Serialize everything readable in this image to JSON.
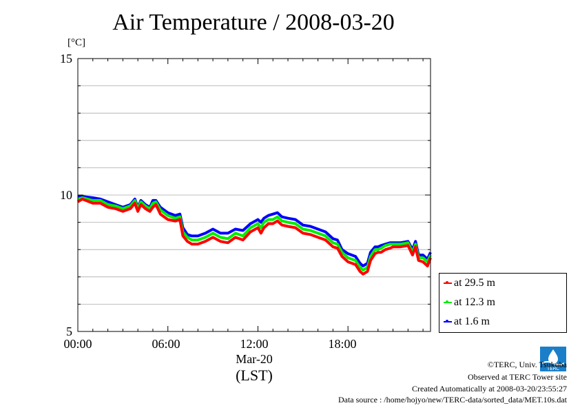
{
  "title": "Air Temperature / 2008-03-20",
  "unit": "[°C]",
  "colors": {
    "red": "#ff0000",
    "green": "#00ee00",
    "blue": "#0000ff",
    "logo": "#1a7fc8"
  },
  "legend": [
    "at 29.5 m",
    "at 12.3 m",
    "at 1.6 m"
  ],
  "xaxis": {
    "date": "Mar-20",
    "tz": "(LST)"
  },
  "footer": {
    "copyright": "©TERC, Univ. Tsukuba",
    "observed": "Observed at TERC Tower site",
    "created": "Created Automatically at 2008-03-20/23:55:27",
    "source": "Data source : /home/hojyo/new/TERC-data/sorted_data/MET.10s.dat"
  },
  "logo_text": "TERC",
  "chart_data": {
    "type": "line",
    "title": "Air Temperature / 2008-03-20",
    "ylabel": "[°C]",
    "xlabel": "(LST)",
    "ylim": [
      5,
      15
    ],
    "xlim": [
      0,
      23.5
    ],
    "yticks": [
      "5",
      "10",
      "15"
    ],
    "xticks": [
      "00:00",
      "06:00",
      "12:00",
      "18:00"
    ],
    "grid": true,
    "legend_position": "bottom-right outside",
    "x": [
      0,
      0.3,
      1,
      1.5,
      2,
      2.5,
      3,
      3.5,
      3.8,
      4,
      4.2,
      4.5,
      4.8,
      5,
      5.2,
      5.5,
      6,
      6.5,
      6.8,
      7,
      7.3,
      7.6,
      8,
      8.5,
      9,
      9.5,
      10,
      10.5,
      11,
      11.5,
      12,
      12.2,
      12.4,
      12.7,
      13,
      13.3,
      13.6,
      14,
      14.5,
      15,
      15.5,
      16,
      16.5,
      17,
      17.3,
      17.6,
      18,
      18.5,
      18.8,
      19,
      19.3,
      19.5,
      19.8,
      20,
      20.2,
      20.5,
      20.8,
      21,
      21.5,
      22,
      22.3,
      22.5,
      22.7,
      23,
      23.3,
      23.5
    ],
    "series": [
      {
        "name": "at 29.5 m",
        "color": "#ff0000",
        "values": [
          9.75,
          9.85,
          9.7,
          9.7,
          9.55,
          9.5,
          9.4,
          9.5,
          9.7,
          9.4,
          9.65,
          9.5,
          9.4,
          9.55,
          9.65,
          9.3,
          9.1,
          9.05,
          9.1,
          8.5,
          8.3,
          8.2,
          8.2,
          8.3,
          8.45,
          8.3,
          8.25,
          8.45,
          8.35,
          8.65,
          8.8,
          8.6,
          8.8,
          8.95,
          8.95,
          9.05,
          8.9,
          8.85,
          8.8,
          8.6,
          8.55,
          8.45,
          8.35,
          8.1,
          8.05,
          7.75,
          7.55,
          7.45,
          7.2,
          7.1,
          7.2,
          7.6,
          7.85,
          7.9,
          7.9,
          8.0,
          8.05,
          8.1,
          8.1,
          8.15,
          7.8,
          8.1,
          7.6,
          7.55,
          7.4,
          7.7
        ]
      },
      {
        "name": "at 12.3 m",
        "color": "#00ee00",
        "values": [
          9.85,
          9.9,
          9.8,
          9.8,
          9.65,
          9.6,
          9.5,
          9.6,
          9.8,
          9.5,
          9.75,
          9.6,
          9.5,
          9.7,
          9.75,
          9.45,
          9.25,
          9.15,
          9.2,
          8.65,
          8.45,
          8.35,
          8.35,
          8.45,
          8.6,
          8.45,
          8.4,
          8.6,
          8.5,
          8.8,
          8.95,
          8.8,
          9.0,
          9.1,
          9.1,
          9.2,
          9.05,
          9.0,
          8.95,
          8.75,
          8.7,
          8.6,
          8.5,
          8.25,
          8.2,
          7.9,
          7.7,
          7.6,
          7.35,
          7.25,
          7.35,
          7.75,
          8.0,
          8.0,
          8.05,
          8.15,
          8.2,
          8.2,
          8.2,
          8.25,
          7.9,
          8.2,
          7.7,
          7.7,
          7.55,
          7.8
        ]
      },
      {
        "name": "at 1.6 m",
        "color": "#0000ff",
        "values": [
          9.95,
          9.95,
          9.9,
          9.85,
          9.75,
          9.65,
          9.55,
          9.65,
          9.85,
          9.55,
          9.8,
          9.65,
          9.55,
          9.8,
          9.8,
          9.55,
          9.35,
          9.25,
          9.3,
          8.8,
          8.55,
          8.5,
          8.5,
          8.6,
          8.75,
          8.6,
          8.6,
          8.75,
          8.7,
          8.95,
          9.1,
          9.0,
          9.15,
          9.25,
          9.3,
          9.35,
          9.2,
          9.15,
          9.1,
          8.9,
          8.85,
          8.75,
          8.65,
          8.4,
          8.35,
          8.0,
          7.85,
          7.75,
          7.5,
          7.4,
          7.5,
          7.9,
          8.1,
          8.1,
          8.15,
          8.2,
          8.25,
          8.25,
          8.25,
          8.3,
          8.0,
          8.3,
          7.8,
          7.8,
          7.65,
          7.9
        ]
      }
    ]
  }
}
